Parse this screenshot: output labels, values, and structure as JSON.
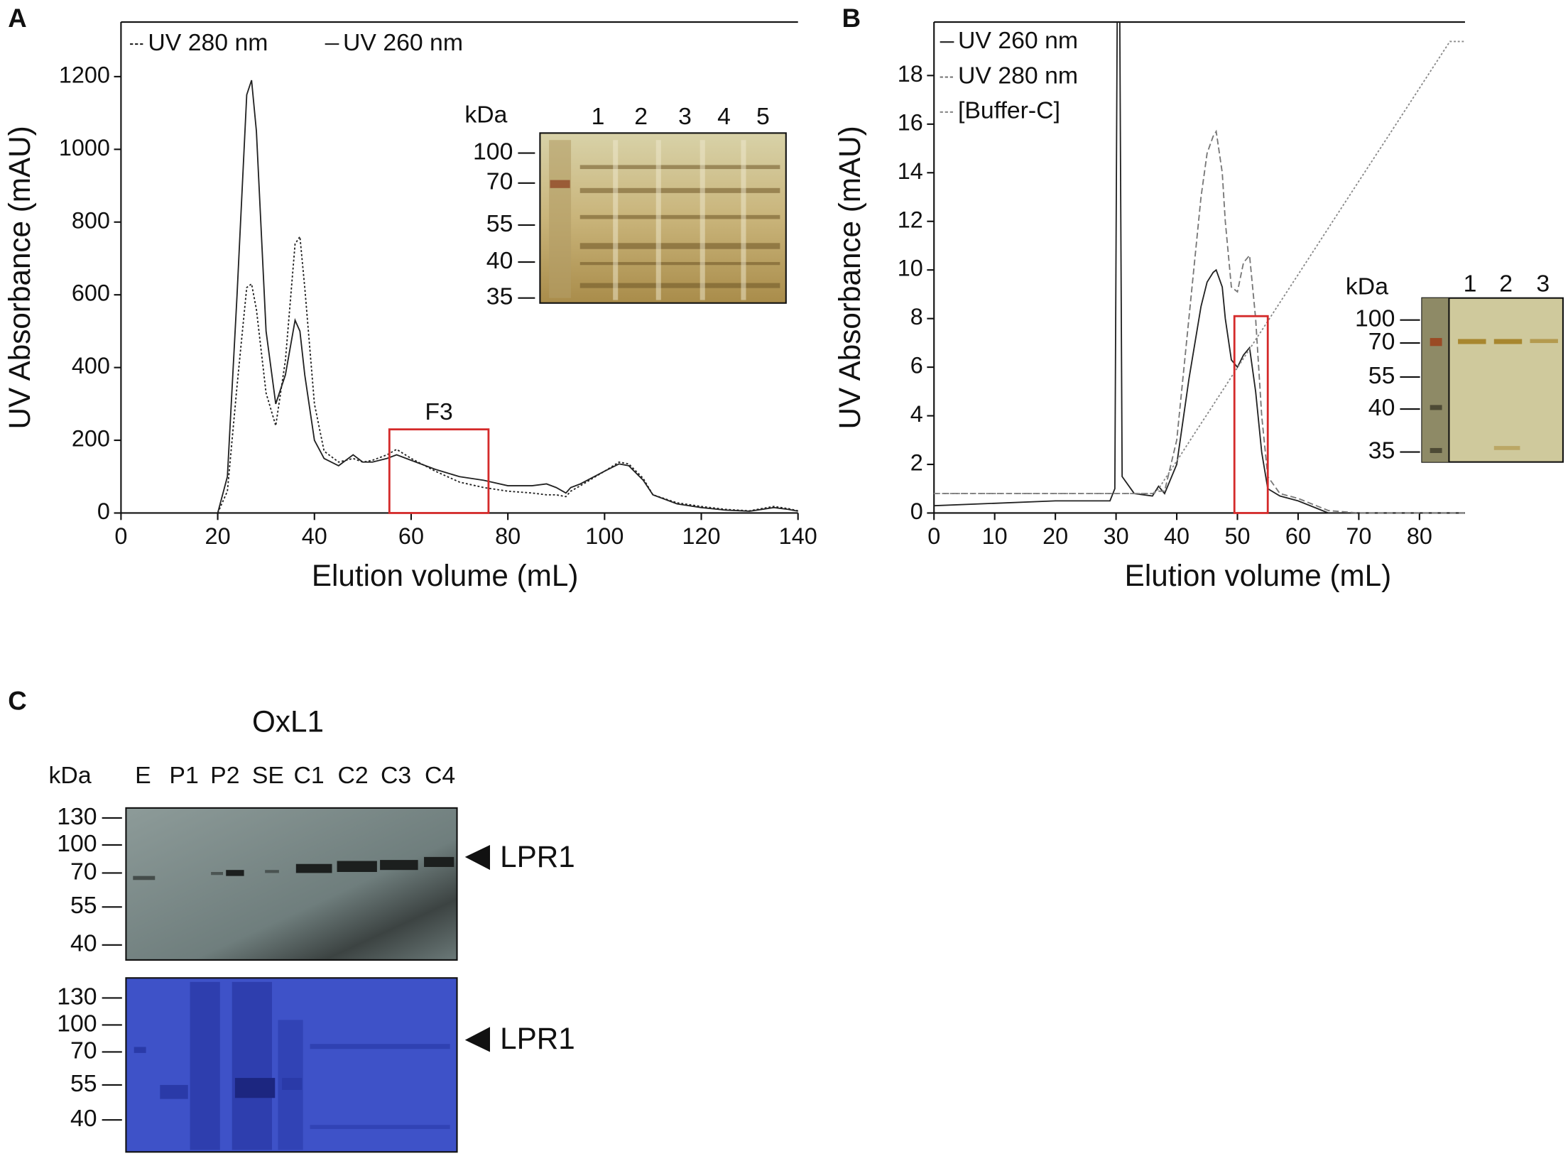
{
  "chart_data": [
    {
      "type": "line",
      "panel": "A",
      "xlabel": "Elution volume (mL)",
      "ylabel": "UV Absorbance (mAU)",
      "x": [
        20,
        22,
        24,
        26,
        27,
        28,
        30,
        32,
        34,
        36,
        37,
        38,
        40,
        42,
        45,
        48,
        50,
        52,
        55,
        57,
        60,
        65,
        70,
        75,
        80,
        85,
        88,
        90,
        92,
        93,
        95,
        100,
        103,
        105,
        108,
        110,
        115,
        120,
        125,
        130,
        135,
        138,
        140
      ],
      "series": [
        {
          "name": "UV 280 nm",
          "color": "#222222",
          "dash": "dotted",
          "values": [
            0,
            60,
            350,
            620,
            630,
            560,
            330,
            240,
            420,
            740,
            760,
            620,
            300,
            170,
            140,
            150,
            140,
            145,
            160,
            175,
            150,
            115,
            85,
            70,
            60,
            55,
            50,
            50,
            45,
            60,
            75,
            115,
            140,
            135,
            95,
            50,
            28,
            18,
            10,
            6,
            18,
            12,
            6
          ]
        },
        {
          "name": "UV 260 nm",
          "color": "#222222",
          "dash": "solid",
          "values": [
            0,
            100,
            600,
            1150,
            1190,
            1050,
            500,
            300,
            380,
            530,
            500,
            380,
            200,
            150,
            130,
            160,
            140,
            140,
            150,
            160,
            145,
            120,
            100,
            90,
            75,
            75,
            80,
            70,
            55,
            70,
            80,
            115,
            135,
            130,
            90,
            50,
            25,
            15,
            8,
            5,
            15,
            10,
            5
          ]
        }
      ],
      "xlim": [
        0,
        140
      ],
      "ylim": [
        0,
        1350
      ],
      "xticks": [
        0,
        20,
        40,
        60,
        80,
        100,
        120,
        140
      ],
      "yticks": [
        0,
        200,
        400,
        600,
        800,
        1000,
        1200
      ],
      "legend": "top-left",
      "grid": false,
      "highlight": {
        "label": "F3",
        "color": "#d42a2a",
        "x": [
          55.5,
          76
        ],
        "y": [
          0,
          230
        ]
      },
      "inset": {
        "unit": "kDa",
        "lanes": [
          "1",
          "2",
          "3",
          "4",
          "5"
        ],
        "markers": [
          100,
          70,
          55,
          40,
          35
        ]
      }
    },
    {
      "type": "line",
      "panel": "B",
      "xlabel": "Elution volume (mL)",
      "ylabel": "UV Absorbance (mAU)",
      "x": [
        0,
        10,
        20,
        29,
        29.8,
        30.2,
        30.6,
        31,
        33,
        36,
        37,
        38,
        40,
        42,
        44,
        45,
        46,
        46.5,
        47.5,
        48,
        49,
        50,
        51,
        52,
        53,
        54,
        55,
        57,
        60,
        63,
        65,
        70,
        75,
        80,
        85,
        87.5
      ],
      "series": [
        {
          "name": "UV 260 nm",
          "color": "#222222",
          "dash": "solid",
          "values": [
            0.3,
            0.4,
            0.5,
            0.5,
            1,
            21,
            21,
            1.5,
            0.8,
            0.7,
            1.1,
            0.8,
            2,
            5.5,
            8.5,
            9.5,
            9.9,
            10,
            9.3,
            8,
            6.3,
            6,
            6.5,
            6.8,
            5,
            2.5,
            1,
            0.7,
            0.5,
            0.2,
            0,
            0,
            0,
            0,
            0,
            0
          ]
        },
        {
          "name": "UV 280 nm",
          "color": "#777777",
          "dash": "dashed",
          "values": [
            0.8,
            0.8,
            0.8,
            0.8,
            0.8,
            0.8,
            0.8,
            0.8,
            0.8,
            0.8,
            0.9,
            0.9,
            3,
            8,
            13,
            14.8,
            15.5,
            15.7,
            14,
            12,
            9.3,
            9.1,
            10.3,
            10.6,
            8,
            4,
            1.5,
            0.8,
            0.6,
            0.3,
            0.1,
            0,
            0,
            0,
            0,
            0
          ]
        },
        {
          "name": "[Buffer-C]",
          "color": "#888888",
          "dash": "dotted",
          "values": [
            0.8,
            0.8,
            0.8,
            0.8,
            0.8,
            0.8,
            0.8,
            0.8,
            0.8,
            0.8,
            0.99,
            1.38,
            2.14,
            2.91,
            3.68,
            4.06,
            4.44,
            4.64,
            5.02,
            5.21,
            5.6,
            5.98,
            6.36,
            6.74,
            7.13,
            7.51,
            7.89,
            8.66,
            9.81,
            10.96,
            11.73,
            13.65,
            15.56,
            17.48,
            19.4,
            19.4
          ]
        }
      ],
      "xlim": [
        0,
        87.5
      ],
      "ylim": [
        0,
        20.2
      ],
      "xticks": [
        0,
        10,
        20,
        30,
        40,
        50,
        60,
        70,
        80
      ],
      "yticks": [
        0,
        2,
        4,
        6,
        8,
        10,
        12,
        14,
        16,
        18
      ],
      "legend": "top-left",
      "grid": false,
      "highlight": {
        "color": "#d42a2a",
        "x": [
          49.5,
          55
        ],
        "y": [
          0,
          8.1
        ]
      },
      "inset": {
        "unit": "kDa",
        "lanes": [
          "1",
          "2",
          "3"
        ],
        "markers": [
          100,
          70,
          55,
          40,
          35
        ]
      }
    }
  ],
  "panel_c": {
    "panel": "C",
    "title": "OxL1",
    "unit": "kDa",
    "lanes": [
      "E",
      "P1",
      "P2",
      "SE",
      "C1",
      "C2",
      "C3",
      "C4"
    ],
    "blots": [
      {
        "markers": [
          130,
          100,
          70,
          55,
          40
        ],
        "target": "LPR1"
      },
      {
        "markers": [
          130,
          100,
          70,
          55,
          40
        ],
        "target": "LPR1"
      }
    ]
  }
}
